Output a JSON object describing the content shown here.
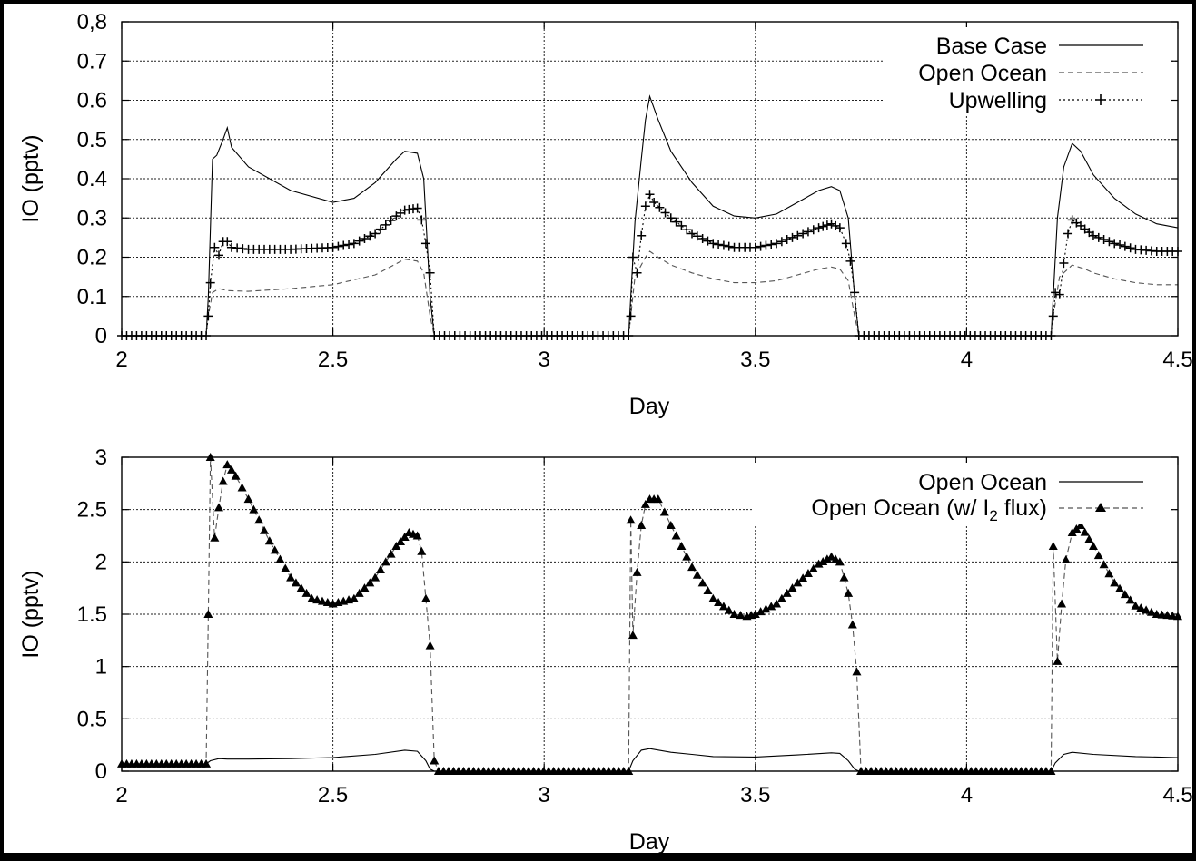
{
  "chart_data": [
    {
      "type": "line",
      "xlabel": "Day",
      "ylabel": "IO (pptv)",
      "xlim": [
        2,
        4.5
      ],
      "ylim": [
        0,
        0.8
      ],
      "xticks": [
        "2",
        "2.5",
        "3",
        "3.5",
        "4",
        "4.5"
      ],
      "yticks": [
        "0",
        "0.1",
        "0.2",
        "0.3",
        "0.4",
        "0.5",
        "0.6",
        "0.7",
        "0,8"
      ],
      "grid": true,
      "legend_position": "top-right",
      "legend": [
        "Base Case",
        "Open Ocean",
        "Upwelling"
      ],
      "series": [
        {
          "name": "Base Case",
          "style": "solid",
          "points": [
            [
              2.0,
              0
            ],
            [
              2.2,
              0
            ],
            [
              2.205,
              0.1
            ],
            [
              2.215,
              0.45
            ],
            [
              2.225,
              0.46
            ],
            [
              2.24,
              0.5
            ],
            [
              2.25,
              0.53
            ],
            [
              2.26,
              0.48
            ],
            [
              2.3,
              0.43
            ],
            [
              2.4,
              0.37
            ],
            [
              2.5,
              0.34
            ],
            [
              2.55,
              0.35
            ],
            [
              2.6,
              0.39
            ],
            [
              2.65,
              0.45
            ],
            [
              2.67,
              0.47
            ],
            [
              2.7,
              0.465
            ],
            [
              2.715,
              0.4
            ],
            [
              2.73,
              0.1
            ],
            [
              2.74,
              0
            ],
            [
              3.2,
              0
            ],
            [
              3.205,
              0.1
            ],
            [
              3.215,
              0.29
            ],
            [
              3.23,
              0.45
            ],
            [
              3.24,
              0.55
            ],
            [
              3.25,
              0.61
            ],
            [
              3.27,
              0.55
            ],
            [
              3.3,
              0.47
            ],
            [
              3.35,
              0.39
            ],
            [
              3.4,
              0.33
            ],
            [
              3.45,
              0.305
            ],
            [
              3.5,
              0.3
            ],
            [
              3.55,
              0.31
            ],
            [
              3.6,
              0.34
            ],
            [
              3.65,
              0.37
            ],
            [
              3.68,
              0.38
            ],
            [
              3.7,
              0.37
            ],
            [
              3.72,
              0.3
            ],
            [
              3.735,
              0.1
            ],
            [
              3.745,
              0
            ],
            [
              4.2,
              0
            ],
            [
              4.205,
              0.1
            ],
            [
              4.215,
              0.3
            ],
            [
              4.23,
              0.43
            ],
            [
              4.25,
              0.49
            ],
            [
              4.27,
              0.47
            ],
            [
              4.3,
              0.41
            ],
            [
              4.35,
              0.35
            ],
            [
              4.4,
              0.31
            ],
            [
              4.45,
              0.285
            ],
            [
              4.5,
              0.275
            ]
          ]
        },
        {
          "name": "Open Ocean",
          "style": "dashed",
          "points": [
            [
              2.0,
              0
            ],
            [
              2.2,
              0
            ],
            [
              2.205,
              0.05
            ],
            [
              2.215,
              0.11
            ],
            [
              2.23,
              0.12
            ],
            [
              2.25,
              0.115
            ],
            [
              2.3,
              0.113
            ],
            [
              2.4,
              0.12
            ],
            [
              2.5,
              0.13
            ],
            [
              2.6,
              0.155
            ],
            [
              2.67,
              0.195
            ],
            [
              2.7,
              0.19
            ],
            [
              2.715,
              0.16
            ],
            [
              2.73,
              0.05
            ],
            [
              2.74,
              0
            ],
            [
              3.2,
              0
            ],
            [
              3.205,
              0.05
            ],
            [
              3.215,
              0.15
            ],
            [
              3.24,
              0.2
            ],
            [
              3.25,
              0.215
            ],
            [
              3.27,
              0.2
            ],
            [
              3.3,
              0.18
            ],
            [
              3.35,
              0.16
            ],
            [
              3.4,
              0.145
            ],
            [
              3.45,
              0.135
            ],
            [
              3.5,
              0.135
            ],
            [
              3.55,
              0.14
            ],
            [
              3.6,
              0.155
            ],
            [
              3.65,
              0.17
            ],
            [
              3.68,
              0.175
            ],
            [
              3.7,
              0.17
            ],
            [
              3.72,
              0.14
            ],
            [
              3.735,
              0.05
            ],
            [
              3.745,
              0
            ],
            [
              4.2,
              0
            ],
            [
              4.205,
              0.05
            ],
            [
              4.22,
              0.15
            ],
            [
              4.25,
              0.18
            ],
            [
              4.28,
              0.17
            ],
            [
              4.3,
              0.16
            ],
            [
              4.35,
              0.145
            ],
            [
              4.4,
              0.135
            ],
            [
              4.45,
              0.13
            ],
            [
              4.5,
              0.13
            ]
          ]
        },
        {
          "name": "Upwelling",
          "style": "dotted-cross",
          "points": [
            [
              2.0,
              0
            ],
            [
              2.2,
              0
            ],
            [
              2.205,
              0.05
            ],
            [
              2.21,
              0.135
            ],
            [
              2.22,
              0.225
            ],
            [
              2.23,
              0.205
            ],
            [
              2.24,
              0.24
            ],
            [
              2.25,
              0.24
            ],
            [
              2.26,
              0.225
            ],
            [
              2.3,
              0.22
            ],
            [
              2.4,
              0.22
            ],
            [
              2.5,
              0.225
            ],
            [
              2.55,
              0.235
            ],
            [
              2.6,
              0.26
            ],
            [
              2.65,
              0.305
            ],
            [
              2.67,
              0.32
            ],
            [
              2.7,
              0.325
            ],
            [
              2.71,
              0.295
            ],
            [
              2.72,
              0.235
            ],
            [
              2.73,
              0.16
            ],
            [
              2.74,
              0
            ],
            [
              3.2,
              0
            ],
            [
              3.205,
              0.05
            ],
            [
              3.21,
              0.2
            ],
            [
              3.22,
              0.16
            ],
            [
              3.23,
              0.255
            ],
            [
              3.24,
              0.33
            ],
            [
              3.25,
              0.36
            ],
            [
              3.26,
              0.34
            ],
            [
              3.3,
              0.3
            ],
            [
              3.35,
              0.26
            ],
            [
              3.4,
              0.235
            ],
            [
              3.45,
              0.225
            ],
            [
              3.5,
              0.225
            ],
            [
              3.55,
              0.235
            ],
            [
              3.6,
              0.255
            ],
            [
              3.65,
              0.275
            ],
            [
              3.68,
              0.285
            ],
            [
              3.7,
              0.275
            ],
            [
              3.715,
              0.235
            ],
            [
              3.725,
              0.19
            ],
            [
              3.735,
              0.11
            ],
            [
              3.745,
              0
            ],
            [
              4.2,
              0
            ],
            [
              4.205,
              0.05
            ],
            [
              4.21,
              0.11
            ],
            [
              4.22,
              0.105
            ],
            [
              4.23,
              0.185
            ],
            [
              4.24,
              0.26
            ],
            [
              4.25,
              0.295
            ],
            [
              4.27,
              0.28
            ],
            [
              4.3,
              0.255
            ],
            [
              4.35,
              0.235
            ],
            [
              4.4,
              0.22
            ],
            [
              4.45,
              0.215
            ],
            [
              4.5,
              0.215
            ]
          ]
        }
      ]
    },
    {
      "type": "line",
      "xlabel": "Day",
      "ylabel": "IO (pptv)",
      "xlim": [
        2,
        4.5
      ],
      "ylim": [
        0,
        3
      ],
      "xticks": [
        "2",
        "2.5",
        "3",
        "3.5",
        "4",
        "4.5"
      ],
      "yticks": [
        "0",
        "0.5",
        "1",
        "1.5",
        "2",
        "2.5",
        "3"
      ],
      "grid": true,
      "legend_position": "top-right",
      "legend": [
        "Open Ocean",
        "Open Ocean (w/ I",
        "2",
        " flux)"
      ],
      "series": [
        {
          "name": "Open Ocean",
          "style": "solid",
          "points": [
            [
              2.0,
              0.07
            ],
            [
              2.2,
              0.07
            ],
            [
              2.21,
              0.1
            ],
            [
              2.23,
              0.12
            ],
            [
              2.25,
              0.115
            ],
            [
              2.3,
              0.115
            ],
            [
              2.4,
              0.12
            ],
            [
              2.5,
              0.13
            ],
            [
              2.6,
              0.16
            ],
            [
              2.67,
              0.2
            ],
            [
              2.7,
              0.19
            ],
            [
              2.72,
              0.1
            ],
            [
              2.73,
              0.02
            ],
            [
              2.74,
              0
            ],
            [
              3.2,
              0
            ],
            [
              3.21,
              0.1
            ],
            [
              3.23,
              0.2
            ],
            [
              3.25,
              0.215
            ],
            [
              3.3,
              0.18
            ],
            [
              3.35,
              0.16
            ],
            [
              3.4,
              0.14
            ],
            [
              3.5,
              0.135
            ],
            [
              3.6,
              0.155
            ],
            [
              3.68,
              0.175
            ],
            [
              3.7,
              0.17
            ],
            [
              3.72,
              0.1
            ],
            [
              3.735,
              0.02
            ],
            [
              3.745,
              0
            ],
            [
              4.2,
              0
            ],
            [
              4.21,
              0.08
            ],
            [
              4.23,
              0.16
            ],
            [
              4.25,
              0.18
            ],
            [
              4.3,
              0.16
            ],
            [
              4.4,
              0.14
            ],
            [
              4.5,
              0.13
            ]
          ]
        },
        {
          "name": "Open Ocean (w/ I2 flux)",
          "style": "dashed-triangle",
          "points": [
            [
              2.0,
              0.07
            ],
            [
              2.2,
              0.07
            ],
            [
              2.205,
              1.5
            ],
            [
              2.21,
              3.0
            ],
            [
              2.22,
              2.23
            ],
            [
              2.23,
              2.52
            ],
            [
              2.24,
              2.77
            ],
            [
              2.25,
              2.93
            ],
            [
              2.26,
              2.88
            ],
            [
              2.27,
              2.82
            ],
            [
              2.3,
              2.6
            ],
            [
              2.35,
              2.2
            ],
            [
              2.4,
              1.85
            ],
            [
              2.45,
              1.65
            ],
            [
              2.5,
              1.6
            ],
            [
              2.55,
              1.65
            ],
            [
              2.6,
              1.85
            ],
            [
              2.65,
              2.15
            ],
            [
              2.68,
              2.28
            ],
            [
              2.7,
              2.25
            ],
            [
              2.71,
              2.1
            ],
            [
              2.72,
              1.65
            ],
            [
              2.73,
              1.2
            ],
            [
              2.74,
              0.1
            ],
            [
              2.75,
              0
            ],
            [
              3.2,
              0
            ],
            [
              3.205,
              2.4
            ],
            [
              3.21,
              1.3
            ],
            [
              3.22,
              1.9
            ],
            [
              3.23,
              2.35
            ],
            [
              3.24,
              2.55
            ],
            [
              3.25,
              2.6
            ],
            [
              3.27,
              2.6
            ],
            [
              3.3,
              2.35
            ],
            [
              3.35,
              1.95
            ],
            [
              3.4,
              1.65
            ],
            [
              3.45,
              1.5
            ],
            [
              3.48,
              1.48
            ],
            [
              3.5,
              1.5
            ],
            [
              3.55,
              1.6
            ],
            [
              3.6,
              1.8
            ],
            [
              3.65,
              1.98
            ],
            [
              3.68,
              2.05
            ],
            [
              3.7,
              2.0
            ],
            [
              3.72,
              1.7
            ],
            [
              3.73,
              1.4
            ],
            [
              3.74,
              0.95
            ],
            [
              3.75,
              0
            ],
            [
              4.2,
              0
            ],
            [
              4.205,
              2.15
            ],
            [
              4.215,
              1.05
            ],
            [
              4.225,
              1.6
            ],
            [
              4.235,
              2.02
            ],
            [
              4.25,
              2.28
            ],
            [
              4.27,
              2.35
            ],
            [
              4.3,
              2.15
            ],
            [
              4.35,
              1.8
            ],
            [
              4.4,
              1.58
            ],
            [
              4.45,
              1.5
            ],
            [
              4.5,
              1.48
            ]
          ]
        }
      ]
    }
  ]
}
